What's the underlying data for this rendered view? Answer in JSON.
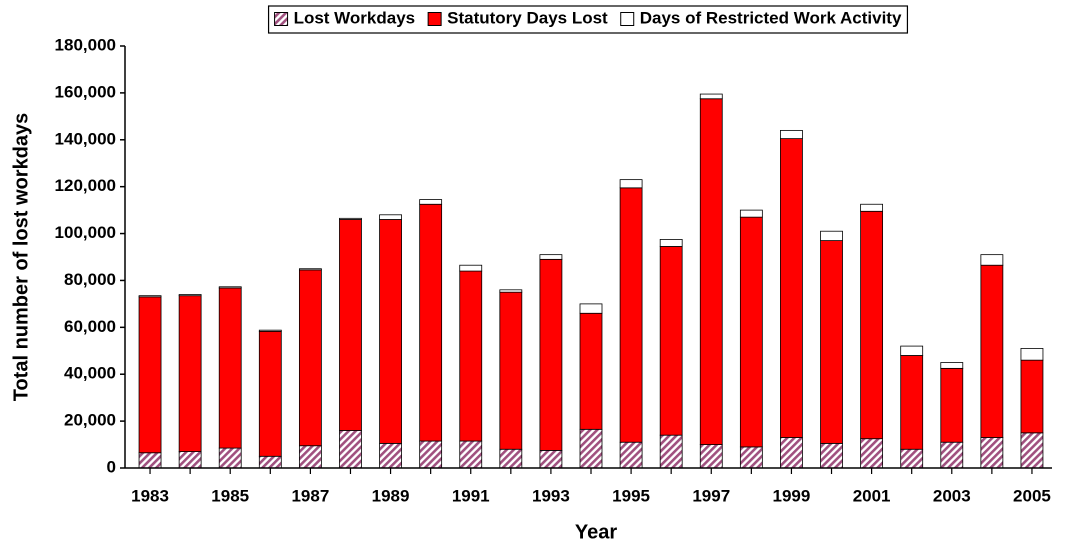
{
  "chart_data": {
    "type": "stacked_bar",
    "xlabel": "Year",
    "ylabel": "Total number of lost workdays",
    "categories": [
      "1983",
      null,
      "1985",
      null,
      "1987",
      null,
      "1989",
      null,
      "1991",
      null,
      "1993",
      null,
      "1995",
      null,
      "1997",
      null,
      "1999",
      null,
      "2001",
      null,
      "2003",
      null,
      "2005"
    ],
    "series": [
      {
        "name": "Lost Workdays",
        "color": "#a0507f",
        "pattern": "hatch",
        "values": [
          6500,
          7000,
          8500,
          5000,
          9500,
          16000,
          10500,
          11500,
          11500,
          8000,
          7500,
          16500,
          11000,
          14000,
          10000,
          9000,
          13000,
          10500,
          12500,
          8000,
          11000,
          13000,
          15000
        ]
      },
      {
        "name": "Statutory Days Lost",
        "color": "#ff0000",
        "values": [
          66500,
          66500,
          68300,
          53300,
          75000,
          90000,
          95500,
          101000,
          72500,
          67000,
          81500,
          49500,
          108500,
          80500,
          147500,
          98000,
          127500,
          86500,
          97000,
          40000,
          31500,
          73500,
          31000
        ]
      },
      {
        "name": "Days of Restricted Work Activity",
        "color": "#ffffff",
        "values": [
          500,
          500,
          500,
          500,
          500,
          500,
          2000,
          2000,
          2500,
          1000,
          2000,
          4000,
          3500,
          3000,
          2000,
          3000,
          3500,
          4000,
          3000,
          4000,
          2500,
          4500,
          5000
        ]
      }
    ],
    "ylim": [
      0,
      180000
    ],
    "yticks": [
      0,
      {
        "value": 20000,
        "label": "20,000"
      },
      {
        "value": 40000,
        "label": "40,000"
      },
      {
        "value": 60000,
        "label": "60,000"
      },
      {
        "value": 80000,
        "label": "80,000"
      },
      {
        "value": 100000,
        "label": "100,000"
      },
      {
        "value": 120000,
        "label": "120,000"
      },
      {
        "value": 140000,
        "label": "140,000"
      },
      {
        "value": 160000,
        "label": "160,000"
      },
      {
        "value": 180000,
        "label": "180,000"
      }
    ],
    "grid": false,
    "legend": "top"
  }
}
